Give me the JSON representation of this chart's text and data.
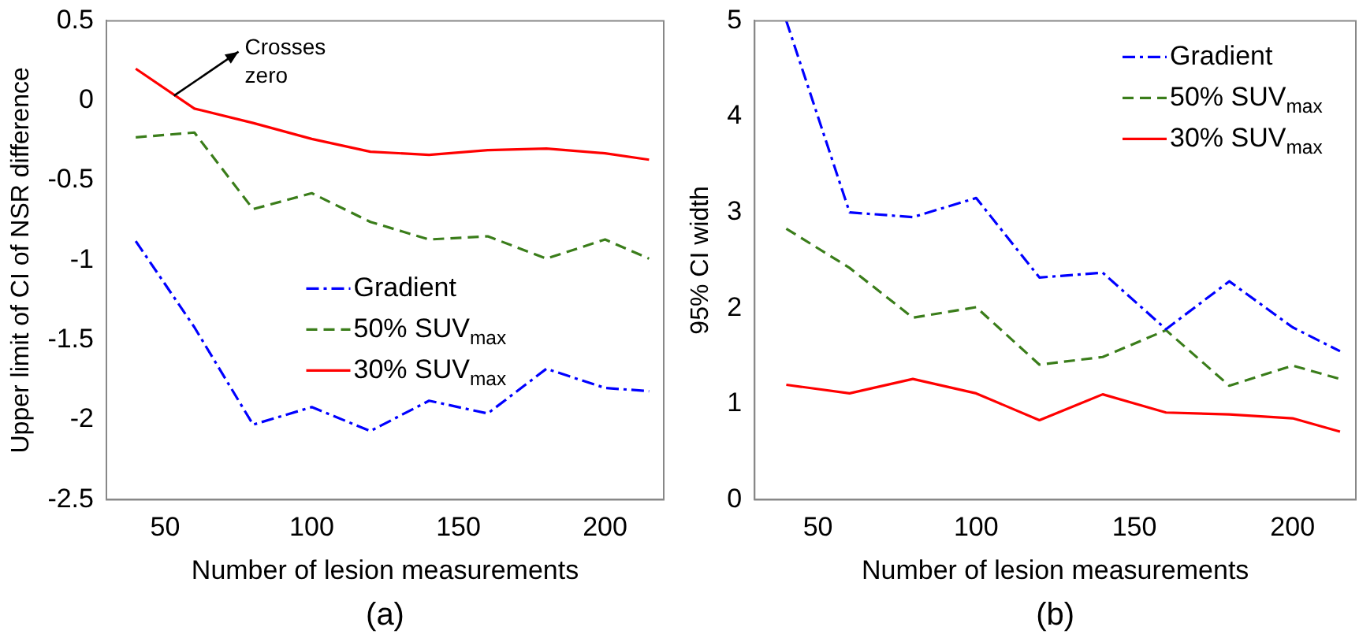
{
  "chart_data": [
    {
      "type": "line",
      "xlabel": "Number of lesion measurements",
      "ylabel": "Upper limit of CI of NSR difference",
      "x": [
        40,
        60,
        80,
        100,
        120,
        140,
        160,
        180,
        200,
        215
      ],
      "series": [
        {
          "name": "Gradient",
          "color": "#0000ff",
          "line_style": "dashdot",
          "values": [
            -0.88,
            -1.42,
            -2.03,
            -1.92,
            -2.07,
            -1.88,
            -1.96,
            -1.68,
            -1.8,
            -1.82
          ]
        },
        {
          "name": "50% SUV$_{max}$",
          "color": "#3a7d1a",
          "line_style": "dashed",
          "values": [
            -0.23,
            -0.2,
            -0.68,
            -0.58,
            -0.76,
            -0.87,
            -0.85,
            -0.99,
            -0.87,
            -0.99
          ]
        },
        {
          "name": "30% SUV$_{max}$",
          "color": "#ff0000",
          "line_style": "solid",
          "values": [
            0.2,
            -0.05,
            -0.14,
            -0.24,
            -0.32,
            -0.34,
            -0.31,
            -0.3,
            -0.33,
            -0.37
          ]
        }
      ],
      "xlim": [
        30,
        220
      ],
      "xticks": [
        50,
        100,
        150,
        200
      ],
      "ylim": [
        -2.5,
        0.5
      ],
      "yticks": [
        -2.5,
        -2,
        -1.5,
        -1,
        -0.5,
        0,
        0.5
      ],
      "grid": false,
      "legend": "center",
      "marker": "none",
      "annotations": [
        {
          "text": "Crosses zero",
          "x": 53,
          "y": 0.03
        },
        "(a)"
      ]
    },
    {
      "type": "line",
      "xlabel": "Number of lesion measurements",
      "ylabel": "95% CI width",
      "x": [
        40,
        60,
        80,
        100,
        120,
        140,
        160,
        180,
        200,
        215
      ],
      "series": [
        {
          "name": "Gradient",
          "color": "#0000ff",
          "line_style": "dashdot",
          "values": [
            5.0,
            3.0,
            2.95,
            3.15,
            2.32,
            2.37,
            1.78,
            2.28,
            1.8,
            1.55
          ]
        },
        {
          "name": "50% SUV$_{max}$",
          "color": "#3a7d1a",
          "line_style": "dashed",
          "values": [
            2.83,
            2.42,
            1.9,
            2.01,
            1.41,
            1.49,
            1.77,
            1.19,
            1.4,
            1.26
          ]
        },
        {
          "name": "30% SUV$_{max}$",
          "color": "#ff0000",
          "line_style": "solid",
          "values": [
            1.2,
            1.11,
            1.26,
            1.11,
            0.83,
            1.1,
            0.91,
            0.89,
            0.85,
            0.71
          ]
        }
      ],
      "xlim": [
        30,
        220
      ],
      "xticks": [
        50,
        100,
        150,
        200
      ],
      "ylim": [
        0,
        5
      ],
      "yticks": [
        0,
        1,
        2,
        3,
        4,
        5
      ],
      "grid": false,
      "legend": "top right",
      "marker": "none",
      "annotations": [
        "(b)"
      ]
    }
  ]
}
